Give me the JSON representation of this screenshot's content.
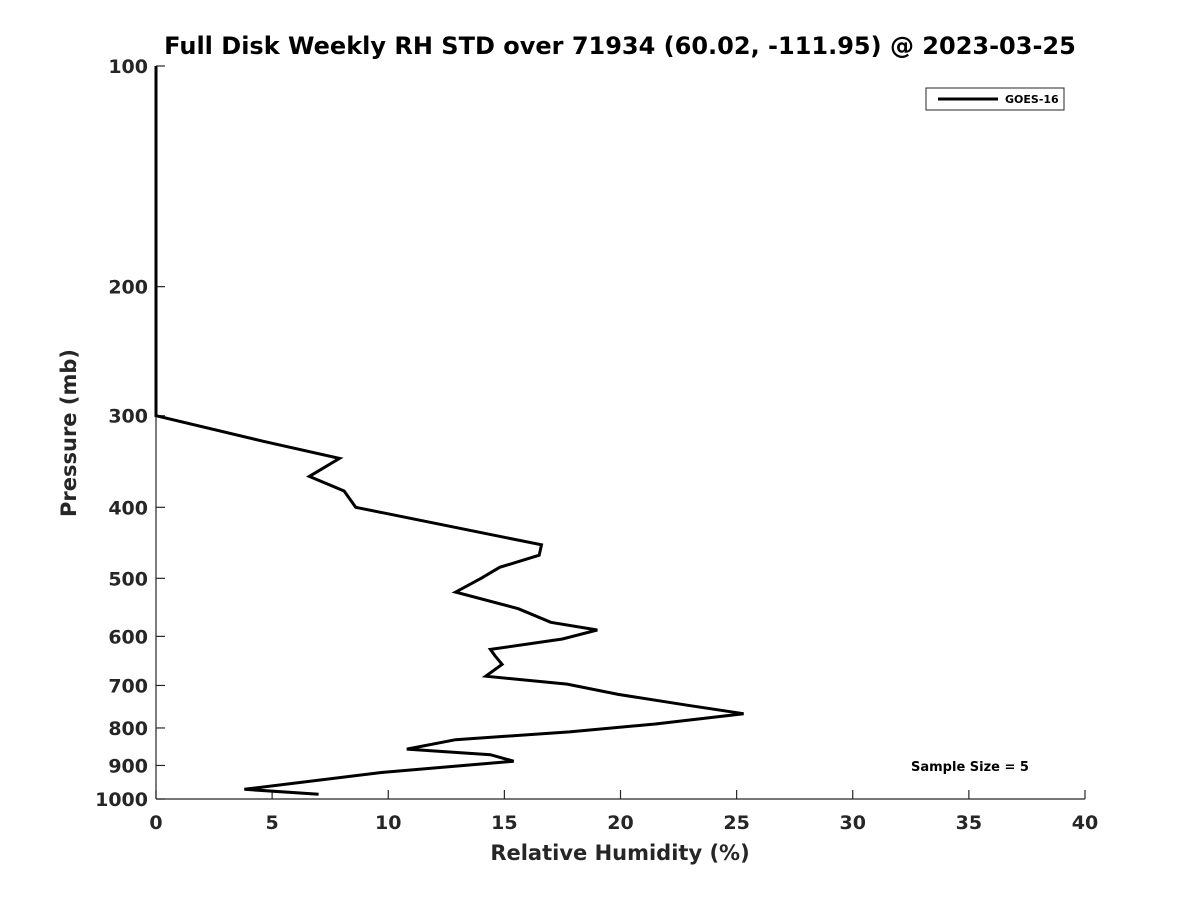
{
  "chart_data": {
    "type": "line",
    "title": "Full Disk Weekly RH STD over 71934 (60.02, -111.95) @ 2023-03-25",
    "xlabel": "Relative Humidity (%)",
    "ylabel": "Pressure (mb)",
    "xlim": [
      0,
      40
    ],
    "ylim": [
      100,
      1000
    ],
    "y_scale": "log",
    "y_reversed": true,
    "x_ticks": [
      "0",
      "5",
      "10",
      "15",
      "20",
      "25",
      "30",
      "35",
      "40"
    ],
    "y_ticks": [
      "100",
      "200",
      "300",
      "400",
      "500",
      "600",
      "700",
      "800",
      "900",
      "1000"
    ],
    "grid": false,
    "legend_position": "top-right",
    "annotation": "Sample Size = 5",
    "series": [
      {
        "name": "GOES-16",
        "color": "#000000",
        "x": [
          0,
          0,
          0,
          0,
          4.6,
          7.9,
          6.6,
          8.1,
          8.6,
          16.6,
          16.5,
          14.8,
          14.0,
          12.9,
          15.6,
          17.0,
          19.0,
          17.5,
          14.4,
          14.6,
          14.9,
          14.2,
          17.7,
          19.9,
          22.9,
          25.3,
          21.5,
          17.8,
          12.9,
          10.8,
          14.4,
          15.4,
          9.7,
          3.8,
          7.0
        ],
        "y": [
          100,
          200,
          250,
          300,
          325,
          343,
          363,
          380,
          400,
          450,
          465,
          483,
          500,
          522,
          550,
          574,
          588,
          605,
          625,
          638,
          655,
          680,
          697,
          720,
          745,
          765,
          790,
          810,
          830,
          855,
          870,
          888,
          920,
          970,
          985
        ]
      }
    ]
  }
}
